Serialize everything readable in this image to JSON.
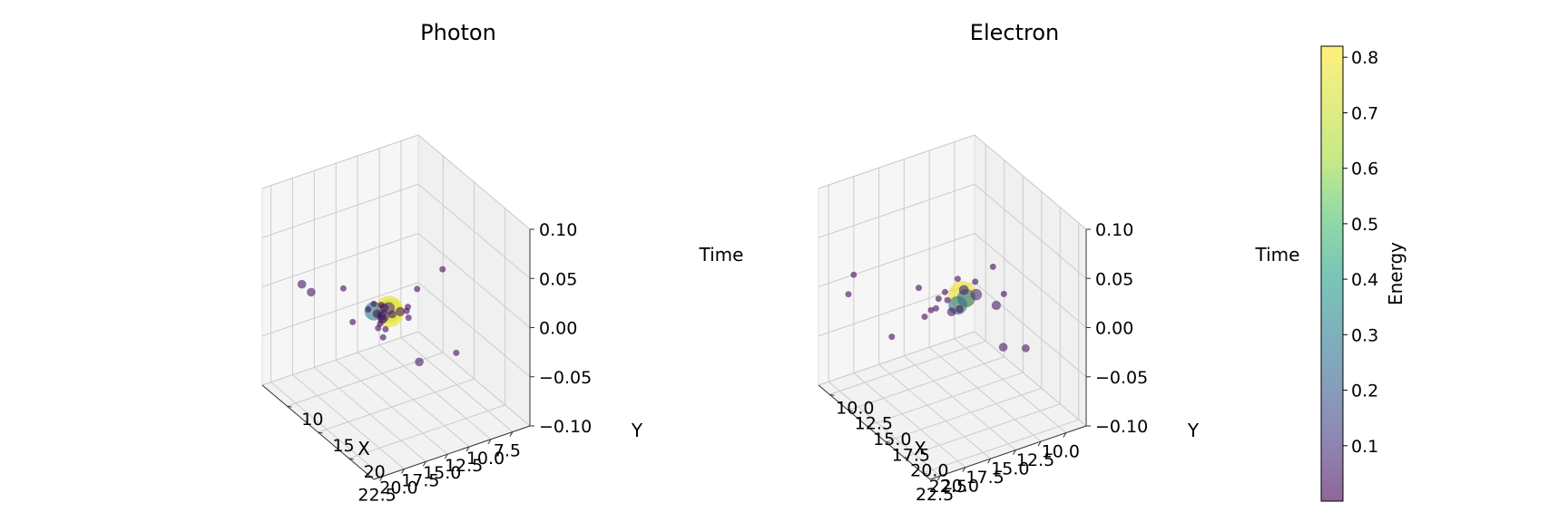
{
  "colorbar": {
    "label": "Energy",
    "range": [
      0.0,
      0.82
    ],
    "ticks": [
      0.1,
      0.2,
      0.3,
      0.4,
      0.5,
      0.6,
      0.7,
      0.8
    ],
    "tick_labels": [
      "0.1",
      "0.2",
      "0.3",
      "0.4",
      "0.5",
      "0.6",
      "0.7",
      "0.8"
    ],
    "colormap": "viridis",
    "alpha": 0.6
  },
  "chart_data": [
    {
      "type": "scatter",
      "projection": "3d",
      "title": "Photon",
      "xlabel": "X",
      "ylabel": "Y",
      "zlabel": "Time",
      "xlim": [
        5.5,
        23.5
      ],
      "ylim": [
        6.0,
        24.0
      ],
      "zlim": [
        -0.1,
        0.1
      ],
      "x_ticks": [
        "7.5",
        "10.0",
        "12.5",
        "15.0",
        "17.5",
        "20.0",
        "22.5"
      ],
      "y_ticks": [
        "10",
        "15",
        "20"
      ],
      "z_ticks": [
        "−0.10",
        "−0.05",
        "0.00",
        "0.05",
        "0.10"
      ],
      "grid": true,
      "points": [
        {
          "x": 15.6,
          "y": 15.5,
          "z": 0.0,
          "energy": 0.8
        },
        {
          "x": 15.3,
          "y": 15.0,
          "z": 0.0,
          "energy": 0.78
        },
        {
          "x": 16.7,
          "y": 14.5,
          "z": 0.0,
          "energy": 0.33
        },
        {
          "x": 16.4,
          "y": 15.6,
          "z": 0.0,
          "energy": 0.12
        },
        {
          "x": 15.2,
          "y": 14.8,
          "z": 0.0,
          "energy": 0.12
        },
        {
          "x": 14.6,
          "y": 15.8,
          "z": 0.0,
          "energy": 0.06
        },
        {
          "x": 15.5,
          "y": 15.8,
          "z": 0.0,
          "energy": 0.04
        },
        {
          "x": 17.9,
          "y": 23.5,
          "z": 0.0,
          "energy": 0.05
        },
        {
          "x": 16.8,
          "y": 16.0,
          "z": 0.0,
          "energy": 0.06
        },
        {
          "x": 16.5,
          "y": 15.5,
          "z": 0.0,
          "energy": 0.05
        },
        {
          "x": 15.5,
          "y": 14.5,
          "z": 0.0,
          "energy": 0.05
        },
        {
          "x": 16.7,
          "y": 15.0,
          "z": 0.0,
          "energy": 0.05
        },
        {
          "x": 16.0,
          "y": 13.5,
          "z": 0.0,
          "energy": 0.02
        },
        {
          "x": 14.0,
          "y": 16.0,
          "z": 0.0,
          "energy": 0.02
        },
        {
          "x": 13.5,
          "y": 15.5,
          "z": 0.0,
          "energy": 0.02
        },
        {
          "x": 11.0,
          "y": 13.5,
          "z": 0.0,
          "energy": 0.02
        },
        {
          "x": 7.0,
          "y": 12.0,
          "z": 0.0,
          "energy": 0.02
        },
        {
          "x": 18.5,
          "y": 18.5,
          "z": 0.0,
          "energy": 0.02
        },
        {
          "x": 17.5,
          "y": 17.5,
          "z": 0.0,
          "energy": 0.02
        },
        {
          "x": 18.0,
          "y": 17.0,
          "z": 0.0,
          "energy": 0.02
        },
        {
          "x": 17.4,
          "y": 16.5,
          "z": 0.0,
          "energy": 0.02
        },
        {
          "x": 14.5,
          "y": 17.0,
          "z": 0.0,
          "energy": 0.02
        },
        {
          "x": 20.0,
          "y": 7.5,
          "z": 0.0,
          "energy": 0.05
        },
        {
          "x": 20.0,
          "y": 9.0,
          "z": 0.0,
          "energy": 0.05
        },
        {
          "x": 17.0,
          "y": 10.0,
          "z": 0.0,
          "energy": 0.02
        },
        {
          "x": 19.5,
          "y": 15.0,
          "z": 0.0,
          "energy": 0.02
        },
        {
          "x": 14.0,
          "y": 24.0,
          "z": 0.0,
          "energy": 0.02
        },
        {
          "x": 15.5,
          "y": 14.0,
          "z": 0.0,
          "energy": 0.02
        },
        {
          "x": 17.0,
          "y": 14.0,
          "z": 0.0,
          "energy": 0.02
        }
      ]
    },
    {
      "type": "scatter",
      "projection": "3d",
      "title": "Electron",
      "xlabel": "X",
      "ylabel": "Y",
      "zlabel": "Time",
      "xlim": [
        8.0,
        23.5
      ],
      "ylim": [
        8.5,
        23.5
      ],
      "zlim": [
        -0.1,
        0.1
      ],
      "x_ticks": [
        "10.0",
        "12.5",
        "15.0",
        "17.5",
        "20.0",
        "22.5"
      ],
      "y_ticks": [
        "10.0",
        "12.5",
        "15.0",
        "17.5",
        "20.0",
        "22.5"
      ],
      "z_ticks": [
        "−0.10",
        "−0.05",
        "0.00",
        "0.05",
        "0.10"
      ],
      "grid": true,
      "points": [
        {
          "x": 14.0,
          "y": 15.0,
          "z": 0.0,
          "energy": 0.8
        },
        {
          "x": 15.2,
          "y": 16.0,
          "z": 0.0,
          "energy": 0.32
        },
        {
          "x": 14.0,
          "y": 15.5,
          "z": 0.0,
          "energy": 0.3
        },
        {
          "x": 13.0,
          "y": 15.5,
          "z": 0.0,
          "energy": 0.1
        },
        {
          "x": 13.5,
          "y": 14.5,
          "z": 0.0,
          "energy": 0.07
        },
        {
          "x": 16.2,
          "y": 16.5,
          "z": 0.0,
          "energy": 0.05
        },
        {
          "x": 15.4,
          "y": 16.5,
          "z": 0.0,
          "energy": 0.04
        },
        {
          "x": 12.5,
          "y": 17.5,
          "z": 0.0,
          "energy": 0.06
        },
        {
          "x": 15.5,
          "y": 22.5,
          "z": 0.0,
          "energy": 0.05
        },
        {
          "x": 14.0,
          "y": 23.5,
          "z": 0.0,
          "energy": 0.04
        },
        {
          "x": 11.0,
          "y": 16.5,
          "z": 0.0,
          "energy": 0.02
        },
        {
          "x": 9.5,
          "y": 13.0,
          "z": 0.0,
          "energy": 0.02
        },
        {
          "x": 12.0,
          "y": 14.0,
          "z": 0.0,
          "energy": 0.02
        },
        {
          "x": 13.0,
          "y": 13.0,
          "z": 0.0,
          "energy": 0.02
        },
        {
          "x": 15.0,
          "y": 14.0,
          "z": 0.0,
          "energy": 0.02
        },
        {
          "x": 16.0,
          "y": 14.5,
          "z": 0.0,
          "energy": 0.02
        },
        {
          "x": 15.5,
          "y": 15.0,
          "z": 0.0,
          "energy": 0.02
        },
        {
          "x": 17.0,
          "y": 15.5,
          "z": 0.0,
          "energy": 0.02
        },
        {
          "x": 17.5,
          "y": 15.5,
          "z": 0.0,
          "energy": 0.02
        },
        {
          "x": 18.5,
          "y": 16.0,
          "z": 0.0,
          "energy": 0.02
        },
        {
          "x": 16.5,
          "y": 12.5,
          "z": 0.0,
          "energy": 0.02
        },
        {
          "x": 22.0,
          "y": 10.5,
          "z": 0.0,
          "energy": 0.02
        },
        {
          "x": 22.5,
          "y": 17.0,
          "z": 0.0,
          "energy": 0.02
        },
        {
          "x": 20.0,
          "y": 8.5,
          "z": 0.0,
          "energy": 0.02
        }
      ]
    }
  ]
}
